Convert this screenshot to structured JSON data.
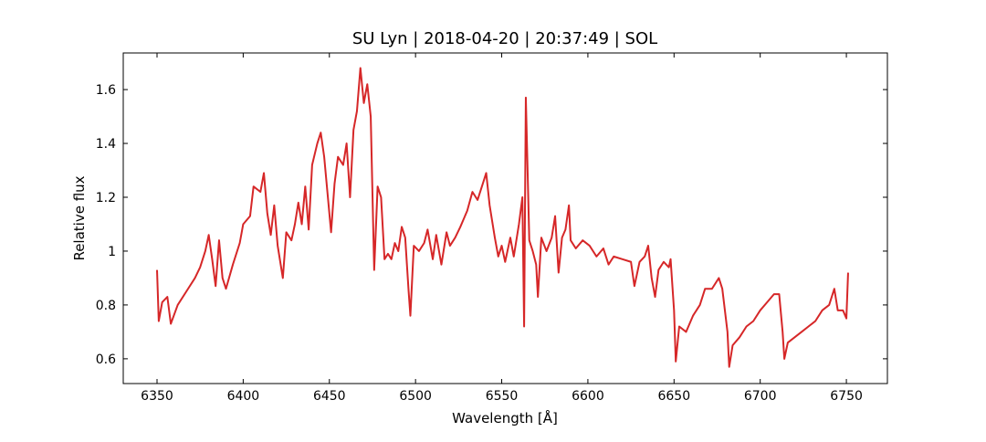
{
  "chart_data": {
    "type": "line",
    "title": "SU Lyn | 2018-04-20 | 20:37:49 | SOL",
    "xlabel": "Wavelength [Å]",
    "ylabel": "Relative flux",
    "color": "#d62728",
    "xlim": [
      6330.4,
      6773.8
    ],
    "ylim": [
      0.508,
      1.736
    ],
    "xticks": [
      6350,
      6400,
      6450,
      6500,
      6550,
      6600,
      6650,
      6700,
      6750
    ],
    "yticks": [
      0.6,
      0.8,
      1.0,
      1.2,
      1.4,
      1.6
    ],
    "x": [
      6350,
      6351,
      6353,
      6356,
      6358,
      6362,
      6368,
      6372,
      6375,
      6378,
      6380,
      6382,
      6384,
      6386,
      6388,
      6390,
      6394,
      6398,
      6400,
      6404,
      6406,
      6410,
      6412,
      6414,
      6416,
      6418,
      6420,
      6423,
      6425,
      6428,
      6430,
      6432,
      6434,
      6436,
      6438,
      6440,
      6443,
      6445,
      6447,
      6449,
      6451,
      6453,
      6455,
      6458,
      6460,
      6462,
      6464,
      6466,
      6468,
      6470,
      6472,
      6474,
      6476,
      6478,
      6480,
      6482,
      6484,
      6486,
      6488,
      6490,
      6492,
      6494,
      6496,
      6497,
      6499,
      6502,
      6505,
      6507,
      6510,
      6512,
      6515,
      6518,
      6520,
      6523,
      6526,
      6530,
      6533,
      6536,
      6539,
      6541,
      6543,
      6546,
      6548,
      6550,
      6552,
      6555,
      6557,
      6560,
      6562,
      6563,
      6564,
      6566,
      6568,
      6570,
      6571,
      6573,
      6576,
      6579,
      6581,
      6583,
      6585,
      6587,
      6589,
      6590,
      6593,
      6597,
      6601,
      6605,
      6609,
      6612,
      6615,
      6620,
      6625,
      6627,
      6630,
      6633,
      6635,
      6637,
      6639,
      6641,
      6644,
      6647,
      6648,
      6650,
      6651,
      6653,
      6657,
      6661,
      6665,
      6668,
      6672,
      6676,
      6678,
      6681,
      6682,
      6684,
      6688,
      6692,
      6696,
      6700,
      6704,
      6708,
      6711,
      6713,
      6714,
      6716,
      6720,
      6724,
      6728,
      6732,
      6736,
      6740,
      6743,
      6745,
      6748,
      6750,
      6751
    ],
    "values": [
      0.93,
      0.74,
      0.81,
      0.83,
      0.73,
      0.8,
      0.86,
      0.9,
      0.94,
      1.0,
      1.06,
      0.97,
      0.87,
      1.04,
      0.9,
      0.86,
      0.95,
      1.03,
      1.1,
      1.13,
      1.24,
      1.22,
      1.29,
      1.14,
      1.06,
      1.17,
      1.02,
      0.9,
      1.07,
      1.04,
      1.1,
      1.18,
      1.1,
      1.24,
      1.08,
      1.32,
      1.4,
      1.44,
      1.35,
      1.21,
      1.07,
      1.25,
      1.35,
      1.32,
      1.4,
      1.2,
      1.45,
      1.52,
      1.68,
      1.55,
      1.62,
      1.5,
      0.93,
      1.24,
      1.2,
      0.97,
      0.99,
      0.97,
      1.03,
      1.0,
      1.09,
      1.05,
      0.85,
      0.76,
      1.02,
      1.0,
      1.03,
      1.08,
      0.97,
      1.06,
      0.95,
      1.07,
      1.02,
      1.05,
      1.09,
      1.15,
      1.22,
      1.19,
      1.25,
      1.29,
      1.17,
      1.05,
      0.98,
      1.02,
      0.96,
      1.05,
      0.98,
      1.1,
      1.2,
      0.72,
      1.57,
      1.04,
      1.0,
      0.95,
      0.83,
      1.05,
      1.0,
      1.05,
      1.13,
      0.92,
      1.05,
      1.08,
      1.17,
      1.04,
      1.01,
      1.04,
      1.02,
      0.98,
      1.01,
      0.95,
      0.98,
      0.97,
      0.96,
      0.87,
      0.96,
      0.98,
      1.02,
      0.9,
      0.83,
      0.93,
      0.96,
      0.94,
      0.97,
      0.78,
      0.59,
      0.72,
      0.7,
      0.76,
      0.8,
      0.86,
      0.86,
      0.9,
      0.86,
      0.7,
      0.57,
      0.65,
      0.68,
      0.72,
      0.74,
      0.78,
      0.81,
      0.84,
      0.84,
      0.7,
      0.6,
      0.66,
      0.68,
      0.7,
      0.72,
      0.74,
      0.78,
      0.8,
      0.86,
      0.78,
      0.78,
      0.75,
      0.92
    ]
  }
}
